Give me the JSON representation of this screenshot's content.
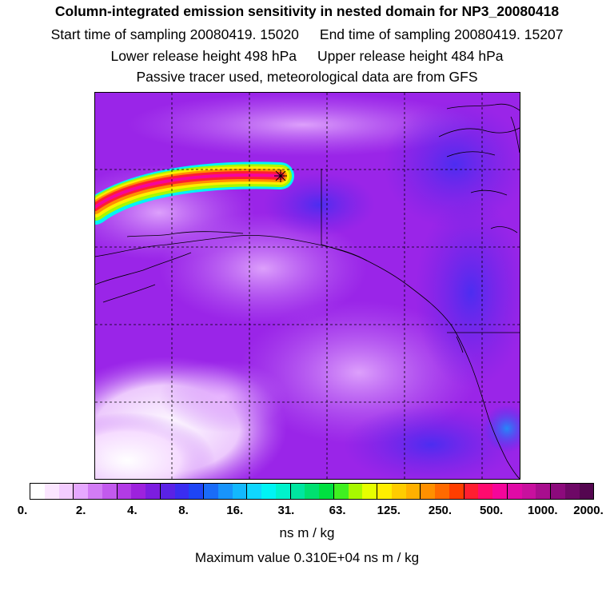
{
  "header": {
    "title": "Column-integrated emission sensitivity in nested domain for NP3_20080418",
    "start_label": "Start time of sampling 20080419. 15020",
    "end_label": "End time of sampling 20080419. 15207",
    "lower_label": "Lower release height  498 hPa",
    "upper_label": "Upper release height  484 hPa",
    "tracer_note": "Passive tracer used, meteorological data are from GFS"
  },
  "colorbar": {
    "tick_labels": [
      "0.",
      "2.",
      "4.",
      "8.",
      "16.",
      "31.",
      "63.",
      "125.",
      "250.",
      "500.",
      "1000.",
      "2000."
    ],
    "colors": [
      "#ffffff",
      "#fbe6ff",
      "#f3ccff",
      "#e6a8ff",
      "#d27cf5",
      "#c25aee",
      "#b23be6",
      "#9d22dd",
      "#7c1ee0",
      "#5a22e6",
      "#3a2df0",
      "#1e45f5",
      "#1a6cf8",
      "#1894fb",
      "#13b8fd",
      "#10d6fe",
      "#00f4f4",
      "#00f2cc",
      "#00e6a0",
      "#00e070",
      "#00e040",
      "#40f020",
      "#a8f800",
      "#e6ff00",
      "#ffee00",
      "#ffcc00",
      "#ffb000",
      "#ff9000",
      "#ff6a00",
      "#ff3e00",
      "#ff1e30",
      "#ff0a6e",
      "#f5069a",
      "#e00aa6",
      "#c8109e",
      "#a80e8e",
      "#8c0a7c",
      "#6e0866",
      "#540650"
    ],
    "units": "ns m / kg",
    "max_value": "Maximum value  0.310E+04 ns m / kg"
  },
  "map": {
    "background_color": "#9a25e8",
    "plume_colors": [
      "#00f4f4",
      "#a8f800",
      "#ffee00",
      "#ff9000",
      "#ff1e30",
      "#f5069a"
    ]
  }
}
